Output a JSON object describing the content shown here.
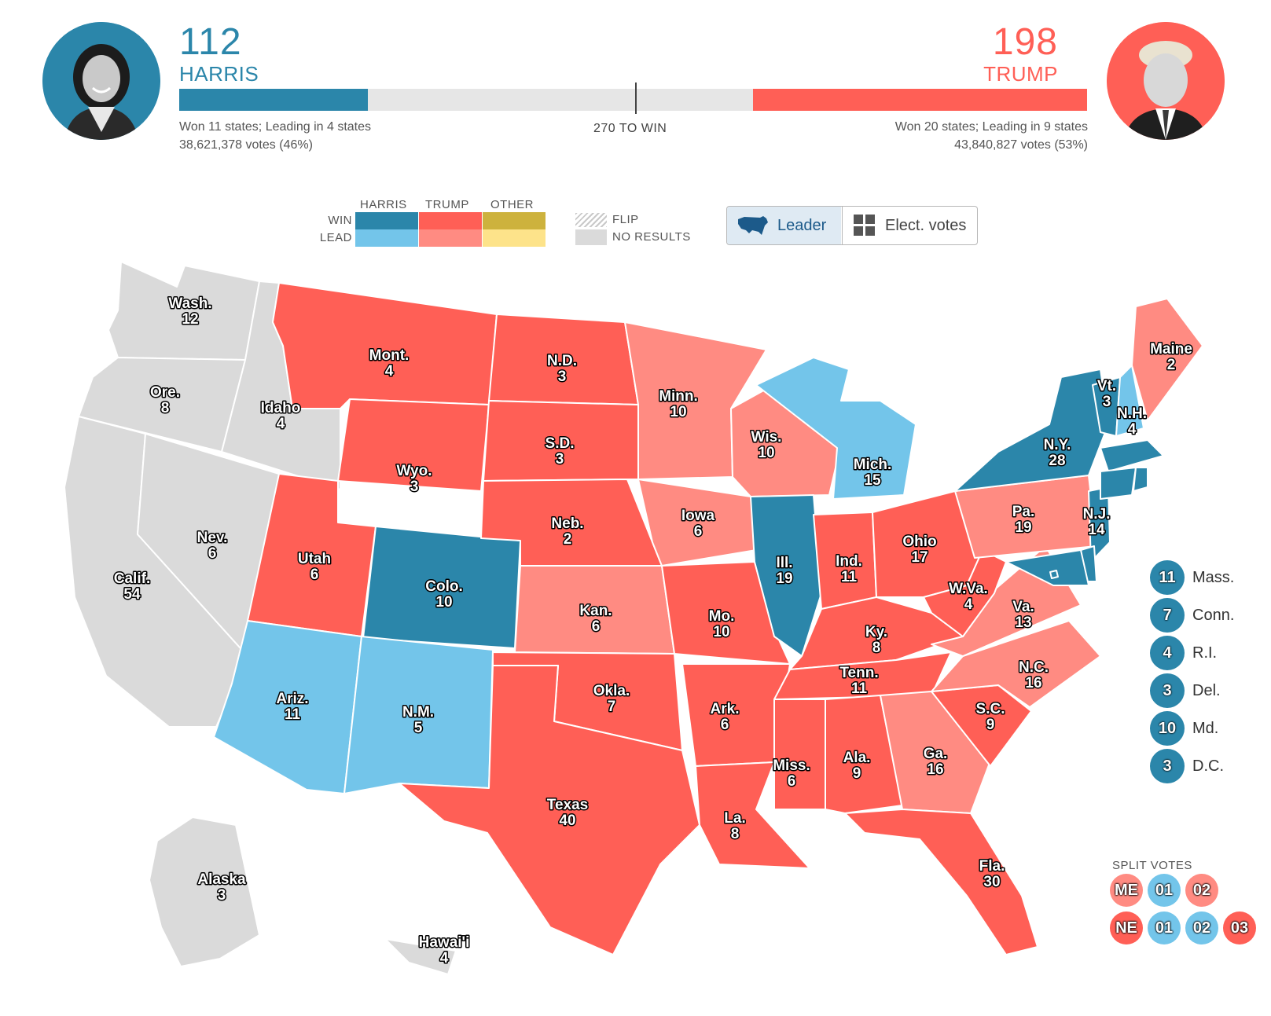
{
  "colors": {
    "harris_win": "#2b86aa",
    "harris_lead": "#73c5ea",
    "trump_win": "#ff5f56",
    "trump_lead": "#ff8b82",
    "other_win": "#cdb23d",
    "other_lead": "#fde38a",
    "no_results": "#dadada",
    "harris_text": "#2b86aa",
    "trump_text": "#ff5f56"
  },
  "header": {
    "harris": {
      "ev": "112",
      "name": "HARRIS",
      "states_summary": "Won 11 states; Leading in 4 states",
      "votes": "38,621,378 votes (46%)",
      "photo_icon": "harris-portrait"
    },
    "trump": {
      "ev": "198",
      "name": "TRUMP",
      "states_summary": "Won 20 states; Leading in 9 states",
      "votes": "43,840,827 votes (53%)",
      "photo_icon": "trump-portrait"
    },
    "to_win": "270 TO WIN",
    "total_ev": 538,
    "harris_bar_ev": 112,
    "trump_bar_ev": 198
  },
  "legend": {
    "col_harris": "HARRIS",
    "col_trump": "TRUMP",
    "col_other": "OTHER",
    "row_win": "WIN",
    "row_lead": "LEAD",
    "flip": "FLIP",
    "no_results": "NO RESULTS"
  },
  "toggle": {
    "leader_label": "Leader",
    "leader_icon": "us-map-icon",
    "ev_label": "Elect. votes",
    "ev_icon": "grid-icon",
    "selected": "Leader"
  },
  "states": [
    {
      "name": "Wash.",
      "ev": "12",
      "status": "none"
    },
    {
      "name": "Ore.",
      "ev": "8",
      "status": "none"
    },
    {
      "name": "Idaho",
      "ev": "4",
      "status": "none"
    },
    {
      "name": "Calif.",
      "ev": "54",
      "status": "none"
    },
    {
      "name": "Nev.",
      "ev": "6",
      "status": "none"
    },
    {
      "name": "Mont.",
      "ev": "4",
      "status": "trump_win"
    },
    {
      "name": "Wyo.",
      "ev": "3",
      "status": "trump_win"
    },
    {
      "name": "Utah",
      "ev": "6",
      "status": "trump_win"
    },
    {
      "name": "Colo.",
      "ev": "10",
      "status": "harris_win"
    },
    {
      "name": "Ariz.",
      "ev": "11",
      "status": "harris_lead"
    },
    {
      "name": "N.M.",
      "ev": "5",
      "status": "harris_lead"
    },
    {
      "name": "N.D.",
      "ev": "3",
      "status": "trump_win"
    },
    {
      "name": "S.D.",
      "ev": "3",
      "status": "trump_win"
    },
    {
      "name": "Neb.",
      "ev": "2",
      "status": "trump_win"
    },
    {
      "name": "Kan.",
      "ev": "6",
      "status": "trump_lead"
    },
    {
      "name": "Okla.",
      "ev": "7",
      "status": "trump_win"
    },
    {
      "name": "Texas",
      "ev": "40",
      "status": "trump_win"
    },
    {
      "name": "Minn.",
      "ev": "10",
      "status": "trump_lead"
    },
    {
      "name": "Iowa",
      "ev": "6",
      "status": "trump_lead"
    },
    {
      "name": "Mo.",
      "ev": "10",
      "status": "trump_win"
    },
    {
      "name": "Ark.",
      "ev": "6",
      "status": "trump_win"
    },
    {
      "name": "La.",
      "ev": "8",
      "status": "trump_win"
    },
    {
      "name": "Wis.",
      "ev": "10",
      "status": "trump_lead"
    },
    {
      "name": "Ill.",
      "ev": "19",
      "status": "harris_win"
    },
    {
      "name": "Mich.",
      "ev": "15",
      "status": "harris_lead"
    },
    {
      "name": "Ind.",
      "ev": "11",
      "status": "trump_win"
    },
    {
      "name": "Ohio",
      "ev": "17",
      "status": "trump_win"
    },
    {
      "name": "Ky.",
      "ev": "8",
      "status": "trump_win"
    },
    {
      "name": "Tenn.",
      "ev": "11",
      "status": "trump_win"
    },
    {
      "name": "Miss.",
      "ev": "6",
      "status": "trump_win"
    },
    {
      "name": "Ala.",
      "ev": "9",
      "status": "trump_win"
    },
    {
      "name": "Ga.",
      "ev": "16",
      "status": "trump_lead"
    },
    {
      "name": "Fla.",
      "ev": "30",
      "status": "trump_win"
    },
    {
      "name": "S.C.",
      "ev": "9",
      "status": "trump_win"
    },
    {
      "name": "N.C.",
      "ev": "16",
      "status": "trump_lead"
    },
    {
      "name": "Va.",
      "ev": "13",
      "status": "trump_lead"
    },
    {
      "name": "W.Va.",
      "ev": "4",
      "status": "trump_win"
    },
    {
      "name": "Pa.",
      "ev": "19",
      "status": "trump_lead"
    },
    {
      "name": "N.Y.",
      "ev": "28",
      "status": "harris_win"
    },
    {
      "name": "N.J.",
      "ev": "14",
      "status": "harris_win"
    },
    {
      "name": "Vt.",
      "ev": "3",
      "status": "harris_win"
    },
    {
      "name": "N.H.",
      "ev": "4",
      "status": "harris_lead"
    },
    {
      "name": "Maine",
      "ev": "2",
      "status": "trump_lead"
    },
    {
      "name": "Alaska",
      "ev": "3",
      "status": "none"
    },
    {
      "name": "Hawai'i",
      "ev": "4",
      "status": "none"
    }
  ],
  "small_states": [
    {
      "ev": "11",
      "name": "Mass.",
      "status": "harris_win"
    },
    {
      "ev": "7",
      "name": "Conn.",
      "status": "harris_win"
    },
    {
      "ev": "4",
      "name": "R.I.",
      "status": "harris_win"
    },
    {
      "ev": "3",
      "name": "Del.",
      "status": "harris_win"
    },
    {
      "ev": "10",
      "name": "Md.",
      "status": "harris_win"
    },
    {
      "ev": "3",
      "name": "D.C.",
      "status": "harris_win"
    }
  ],
  "split_votes": {
    "title": "SPLIT VOTES",
    "me": [
      {
        "label": "ME",
        "status": "trump_lead"
      },
      {
        "label": "01",
        "status": "harris_lead"
      },
      {
        "label": "02",
        "status": "trump_lead"
      }
    ],
    "ne": [
      {
        "label": "NE",
        "status": "trump_win"
      },
      {
        "label": "01",
        "status": "harris_lead"
      },
      {
        "label": "02",
        "status": "harris_lead"
      },
      {
        "label": "03",
        "status": "trump_win"
      }
    ]
  }
}
